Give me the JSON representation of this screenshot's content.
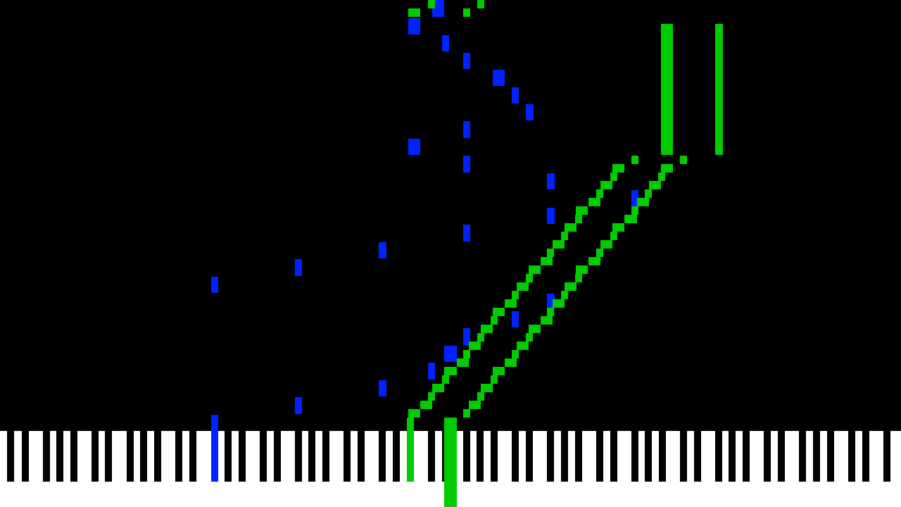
{
  "app": {
    "type": "piano-roll-visualizer"
  },
  "colors": {
    "background": "#000000",
    "track_a": "#0022ff",
    "track_b": "#00cc00",
    "white_key": "#ffffff",
    "black_key": "#000000"
  },
  "notes": {
    "track_a_count": 31,
    "track_b_count": 89
  },
  "keyboard": {
    "active_keys": [
      {
        "track": "track_a"
      },
      {
        "track": "track_b"
      },
      {
        "track": "track_b"
      }
    ]
  }
}
